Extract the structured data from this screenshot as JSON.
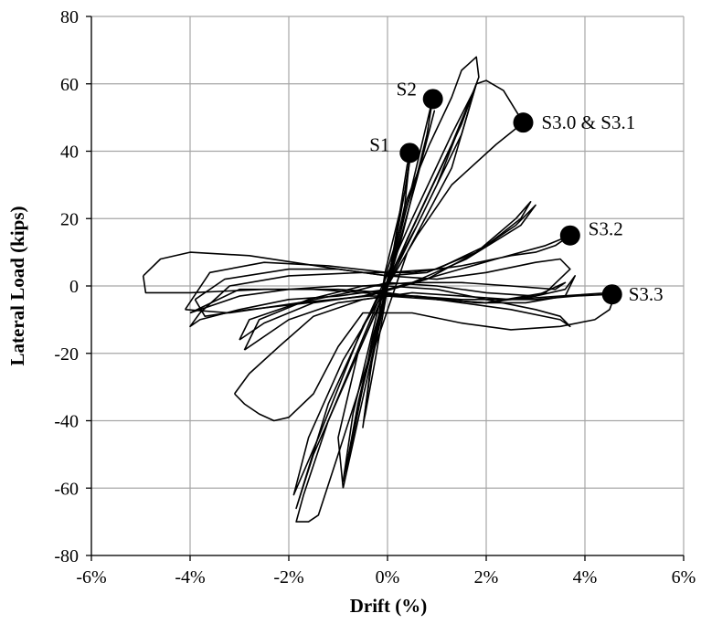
{
  "chart_data": {
    "type": "scatter",
    "title": "",
    "xlabel": "Drift (%)",
    "ylabel": "Lateral Load (kips)",
    "xlim": [
      -6,
      6
    ],
    "ylim": [
      -80,
      80
    ],
    "x_ticks": [
      -6,
      -4,
      -2,
      0,
      2,
      4,
      6
    ],
    "x_tick_labels": [
      "-6%",
      "-4%",
      "-2%",
      "0%",
      "2%",
      "4%",
      "6%"
    ],
    "y_ticks": [
      -80,
      -60,
      -40,
      -20,
      0,
      20,
      40,
      60,
      80
    ],
    "y_tick_labels": [
      "-80",
      "-60",
      "-40",
      "-20",
      "0",
      "20",
      "40",
      "60",
      "80"
    ],
    "grid": true,
    "legend": "none",
    "marked_points": [
      {
        "label": "S1",
        "x": 0.45,
        "y": 39.5
      },
      {
        "label": "S2",
        "x": 0.92,
        "y": 55.5
      },
      {
        "label": "S3.0 & S3.1",
        "x": 2.75,
        "y": 48.5
      },
      {
        "label": "S3.2",
        "x": 3.7,
        "y": 15
      },
      {
        "label": "S3.3",
        "x": 4.55,
        "y": -2.5
      }
    ],
    "hysteresis_loops": [
      [
        [
          0.0,
          0.0
        ],
        [
          0.25,
          22
        ],
        [
          0.4,
          36
        ],
        [
          0.48,
          40
        ],
        [
          0.4,
          32
        ],
        [
          0.1,
          8
        ],
        [
          -0.25,
          -22
        ],
        [
          -0.45,
          -38
        ],
        [
          -0.48,
          -40
        ],
        [
          -0.3,
          -20
        ],
        [
          0.0,
          0.0
        ]
      ],
      [
        [
          0.0,
          0.0
        ],
        [
          0.35,
          24
        ],
        [
          0.45,
          38
        ],
        [
          0.35,
          28
        ],
        [
          -0.05,
          4
        ],
        [
          -0.35,
          -26
        ],
        [
          -0.5,
          -42
        ],
        [
          -0.35,
          -25
        ],
        [
          0.0,
          0.0
        ]
      ],
      [
        [
          0.0,
          0.0
        ],
        [
          0.5,
          30
        ],
        [
          0.92,
          56
        ],
        [
          0.8,
          45
        ],
        [
          0.3,
          15
        ],
        [
          -0.3,
          -15
        ],
        [
          -0.7,
          -45
        ],
        [
          -0.85,
          -55
        ],
        [
          -0.6,
          -35
        ],
        [
          -0.2,
          -10
        ],
        [
          0.0,
          0.0
        ]
      ],
      [
        [
          0.0,
          0.0
        ],
        [
          0.6,
          32
        ],
        [
          0.95,
          52
        ],
        [
          0.7,
          38
        ],
        [
          0.0,
          5
        ],
        [
          -0.7,
          -38
        ],
        [
          -0.9,
          -58
        ],
        [
          -0.5,
          -30
        ],
        [
          0.0,
          0.0
        ]
      ],
      [
        [
          0.0,
          0.0
        ],
        [
          1.0,
          30
        ],
        [
          1.8,
          60
        ],
        [
          1.5,
          45
        ],
        [
          0.6,
          18
        ],
        [
          -0.5,
          -12
        ],
        [
          -1.4,
          -45
        ],
        [
          -1.9,
          -62
        ],
        [
          -1.6,
          -45
        ],
        [
          -0.9,
          -22
        ],
        [
          0.0,
          0.0
        ]
      ],
      [
        [
          -0.2,
          -3
        ],
        [
          0.5,
          20
        ],
        [
          1.3,
          45
        ],
        [
          1.75,
          58
        ],
        [
          1.3,
          42
        ],
        [
          0.4,
          14
        ],
        [
          -0.6,
          -20
        ],
        [
          -1.5,
          -50
        ],
        [
          -1.85,
          -66
        ],
        [
          -1.2,
          -35
        ],
        [
          -0.2,
          -3
        ]
      ],
      [
        [
          0.0,
          2
        ],
        [
          0.4,
          26
        ],
        [
          0.85,
          42
        ],
        [
          1.3,
          56
        ],
        [
          1.5,
          64
        ],
        [
          1.8,
          68
        ],
        [
          1.85,
          62
        ],
        [
          1.5,
          48
        ],
        [
          0.6,
          20
        ],
        [
          -0.2,
          -5
        ],
        [
          -1.2,
          -40
        ],
        [
          -1.7,
          -62
        ],
        [
          -1.85,
          -70
        ],
        [
          -1.6,
          -70
        ],
        [
          -1.4,
          -68
        ],
        [
          -1.0,
          -50
        ],
        [
          -0.3,
          -18
        ],
        [
          0.0,
          2
        ]
      ],
      [
        [
          -0.9,
          -60
        ],
        [
          -0.3,
          -20
        ],
        [
          0.4,
          10
        ],
        [
          1.3,
          35
        ],
        [
          1.8,
          60
        ],
        [
          2.0,
          61
        ],
        [
          2.35,
          58
        ],
        [
          2.75,
          48.5
        ],
        [
          2.2,
          42
        ],
        [
          1.3,
          30
        ],
        [
          0.6,
          15
        ],
        [
          0.0,
          0
        ],
        [
          -0.6,
          -20
        ],
        [
          -1.0,
          -45
        ],
        [
          -0.9,
          -60
        ]
      ],
      [
        [
          -3.8,
          -8
        ],
        [
          -3.2,
          0
        ],
        [
          -2.0,
          3
        ],
        [
          -0.5,
          4
        ],
        [
          0.5,
          4
        ],
        [
          1.5,
          6
        ],
        [
          2.5,
          9
        ],
        [
          3.0,
          10
        ],
        [
          3.4,
          12
        ],
        [
          3.7,
          15
        ],
        [
          3.2,
          12
        ],
        [
          2.2,
          8
        ],
        [
          1.0,
          3
        ],
        [
          0.0,
          -1
        ],
        [
          -1.0,
          -3
        ],
        [
          -2.0,
          -4
        ],
        [
          -3.0,
          -7
        ],
        [
          -3.8,
          -10
        ],
        [
          -4.0,
          -12
        ],
        [
          -3.8,
          -8
        ]
      ],
      [
        [
          -3.9,
          -4
        ],
        [
          -3.3,
          2
        ],
        [
          -2.0,
          5
        ],
        [
          -1.0,
          5
        ],
        [
          0.0,
          3
        ],
        [
          0.8,
          4
        ],
        [
          1.8,
          10
        ],
        [
          2.6,
          18
        ],
        [
          3.0,
          24
        ],
        [
          2.7,
          18
        ],
        [
          1.6,
          8
        ],
        [
          0.5,
          1
        ],
        [
          -0.5,
          -3
        ],
        [
          -1.6,
          -5
        ],
        [
          -2.8,
          -7
        ],
        [
          -3.7,
          -9
        ],
        [
          -3.9,
          -4
        ]
      ],
      [
        [
          -4.1,
          -7
        ],
        [
          -3.6,
          4
        ],
        [
          -2.5,
          7
        ],
        [
          -1.2,
          6
        ],
        [
          0.0,
          4
        ],
        [
          1.0,
          5
        ],
        [
          2.0,
          12
        ],
        [
          2.7,
          20
        ],
        [
          2.9,
          25
        ],
        [
          2.6,
          20
        ],
        [
          1.8,
          10
        ],
        [
          0.8,
          2
        ],
        [
          -0.4,
          -3
        ],
        [
          -1.8,
          -5
        ],
        [
          -3.2,
          -8
        ],
        [
          -4.1,
          -7
        ]
      ],
      [
        [
          -4.95,
          3
        ],
        [
          -4.6,
          8
        ],
        [
          -4.0,
          10
        ],
        [
          -2.8,
          9
        ],
        [
          -1.0,
          5
        ],
        [
          0.0,
          3
        ],
        [
          1.0,
          2
        ],
        [
          2.0,
          4
        ],
        [
          3.0,
          7
        ],
        [
          3.5,
          8
        ],
        [
          3.7,
          5
        ],
        [
          3.2,
          -2
        ],
        [
          2.0,
          -5
        ],
        [
          1.0,
          -4
        ],
        [
          0.0,
          -2
        ],
        [
          -1.0,
          -1
        ],
        [
          -2.5,
          -1
        ],
        [
          -4.0,
          -2
        ],
        [
          -4.9,
          -2
        ],
        [
          -4.95,
          3
        ]
      ],
      [
        [
          -4.0,
          -8
        ],
        [
          -3.0,
          -3
        ],
        [
          -2.0,
          -1
        ],
        [
          -1.0,
          0
        ],
        [
          0.0,
          0
        ],
        [
          1.0,
          -1
        ],
        [
          2.0,
          -4
        ],
        [
          3.0,
          -7
        ],
        [
          3.5,
          -9
        ],
        [
          3.7,
          -12
        ],
        [
          3.5,
          -10
        ],
        [
          2.5,
          -7
        ],
        [
          1.5,
          -5
        ],
        [
          0.5,
          -3
        ],
        [
          -0.5,
          -2
        ],
        [
          -1.5,
          -1
        ],
        [
          -3.0,
          -1
        ],
        [
          -4.0,
          -8
        ]
      ],
      [
        [
          -3.0,
          -16
        ],
        [
          -2.8,
          -10
        ],
        [
          -1.8,
          -5
        ],
        [
          -0.8,
          -2
        ],
        [
          0.0,
          1
        ],
        [
          1.0,
          0
        ],
        [
          2.0,
          -2
        ],
        [
          3.0,
          -3
        ],
        [
          3.6,
          -1
        ],
        [
          3.8,
          3
        ],
        [
          3.6,
          -3
        ],
        [
          2.8,
          -5
        ],
        [
          1.8,
          -5
        ],
        [
          0.6,
          -3
        ],
        [
          -0.5,
          -3
        ],
        [
          -1.5,
          -5
        ],
        [
          -2.5,
          -11
        ],
        [
          -3.0,
          -16
        ]
      ],
      [
        [
          -2.9,
          -19
        ],
        [
          -2.6,
          -10
        ],
        [
          -1.6,
          -4
        ],
        [
          -0.5,
          0
        ],
        [
          0.5,
          1
        ],
        [
          1.5,
          1
        ],
        [
          2.5,
          0
        ],
        [
          3.4,
          -1
        ],
        [
          3.6,
          1
        ],
        [
          3.0,
          -3
        ],
        [
          2.0,
          -5
        ],
        [
          1.0,
          -4
        ],
        [
          0.0,
          -3
        ],
        [
          -1.0,
          -5
        ],
        [
          -2.0,
          -10
        ],
        [
          -2.9,
          -19
        ]
      ],
      [
        [
          -3.1,
          -32
        ],
        [
          -2.8,
          -26
        ],
        [
          -2.2,
          -18
        ],
        [
          -1.5,
          -9
        ],
        [
          -0.5,
          -4
        ],
        [
          0.5,
          -2
        ],
        [
          1.5,
          -3
        ],
        [
          2.5,
          -4
        ],
        [
          3.5,
          -3
        ],
        [
          4.5,
          -2
        ],
        [
          4.6,
          -3
        ],
        [
          4.5,
          -7
        ],
        [
          4.2,
          -10
        ],
        [
          3.5,
          -12
        ],
        [
          2.5,
          -13
        ],
        [
          1.5,
          -11
        ],
        [
          0.5,
          -8
        ],
        [
          -0.5,
          -8
        ],
        [
          -1.0,
          -18
        ],
        [
          -1.5,
          -32
        ],
        [
          -2.0,
          -39
        ],
        [
          -2.3,
          -40
        ],
        [
          -2.6,
          -38
        ],
        [
          -2.9,
          -35
        ],
        [
          -3.1,
          -32
        ]
      ],
      [
        [
          4.5,
          -2.5
        ],
        [
          3.8,
          -3
        ],
        [
          3.0,
          -4
        ],
        [
          1.5,
          -4
        ],
        [
          0.5,
          -3
        ],
        [
          -0.2,
          -2
        ]
      ]
    ]
  }
}
